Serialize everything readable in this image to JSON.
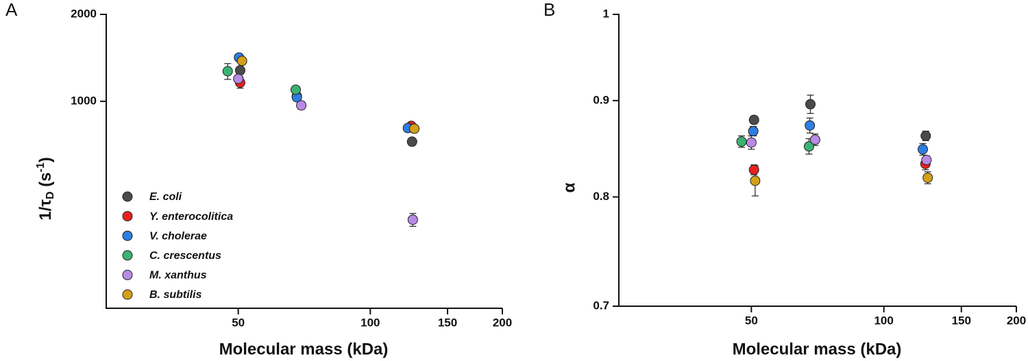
{
  "chart_data": [
    {
      "type": "scatter",
      "panel_label": "A",
      "xlabel": "Molecular mass (kDa)",
      "ylabel": [
        "1/τ",
        "D",
        " (s",
        "-1",
        ")"
      ],
      "log_x": true,
      "log_y": true,
      "xlim": [
        25,
        200
      ],
      "ylim": [
        192,
        2000
      ],
      "xticks": [
        50,
        100,
        150,
        200
      ],
      "yticks": [
        1000,
        2000
      ],
      "legend": "lower left",
      "series": [
        {
          "name": "E. coli",
          "color": "#4b4b4b",
          "x": [
            50.5,
            68,
            124.5
          ],
          "values": [
            1280,
            1040,
            725
          ],
          "errors": [
            30,
            20,
            20
          ]
        },
        {
          "name": "Y. enterocolitica",
          "color": "#e8211f",
          "x": [
            50.5,
            124
          ],
          "values": [
            1160,
            822
          ],
          "errors": [
            50,
            20
          ]
        },
        {
          "name": "V. cholerae",
          "color": "#2e7de1",
          "x": [
            50.2,
            68,
            121.8
          ],
          "values": [
            1418,
            1033,
            808
          ],
          "errors": [
            20,
            25,
            20
          ]
        },
        {
          "name": "C. crescentus",
          "color": "#3bb273",
          "x": [
            47.3,
            67.6
          ],
          "values": [
            1271,
            1097
          ],
          "errors": [
            80,
            15
          ]
        },
        {
          "name": "M. xanthus",
          "color": "#b98ae6",
          "x": [
            50,
            69.6,
            125
          ],
          "values": [
            1197,
            968,
            389
          ],
          "errors": [
            15,
            30,
            20
          ]
        },
        {
          "name": "B. subtilis",
          "color": "#d4a017",
          "x": [
            51,
            126
          ],
          "values": [
            1380,
            804
          ],
          "errors": [
            20,
            20
          ]
        }
      ]
    },
    {
      "type": "scatter",
      "panel_label": "B",
      "xlabel": "Molecular mass (kDa)",
      "ylabel": "α",
      "log_x": true,
      "log_y": true,
      "xlim": [
        25,
        200
      ],
      "ylim": [
        0.7,
        1
      ],
      "xticks": [
        50,
        100,
        150,
        200
      ],
      "yticks": [
        0.7,
        0.8,
        0.9,
        1
      ],
      "series": [
        {
          "color": "#4b4b4b",
          "x": [
            50.7,
            68.1,
            124.5
          ],
          "values": [
            0.879,
            0.896,
            0.862
          ],
          "errors": [
            0.004,
            0.01,
            0.005
          ]
        },
        {
          "color": "#e8211f",
          "x": [
            50.7,
            124.3
          ],
          "values": [
            0.827,
            0.833
          ],
          "errors": [
            0.005,
            0.006
          ]
        },
        {
          "color": "#2e7de1",
          "x": [
            50.5,
            67.9,
            122.6
          ],
          "values": [
            0.867,
            0.873,
            0.848
          ],
          "errors": [
            0.005,
            0.008,
            0.006
          ]
        },
        {
          "color": "#3bb273",
          "x": [
            47.5,
            67.6
          ],
          "values": [
            0.856,
            0.851
          ],
          "errors": [
            0.006,
            0.008
          ]
        },
        {
          "color": "#b98ae6",
          "x": [
            50,
            69.8,
            125
          ],
          "values": [
            0.855,
            0.858,
            0.837
          ],
          "errors": [
            0.007,
            0.006,
            0.004
          ]
        },
        {
          "color": "#d4a017",
          "x": [
            51,
            125.8
          ],
          "values": [
            0.816,
            0.819
          ],
          "errors": [
            0.015,
            0.006
          ]
        }
      ]
    }
  ]
}
